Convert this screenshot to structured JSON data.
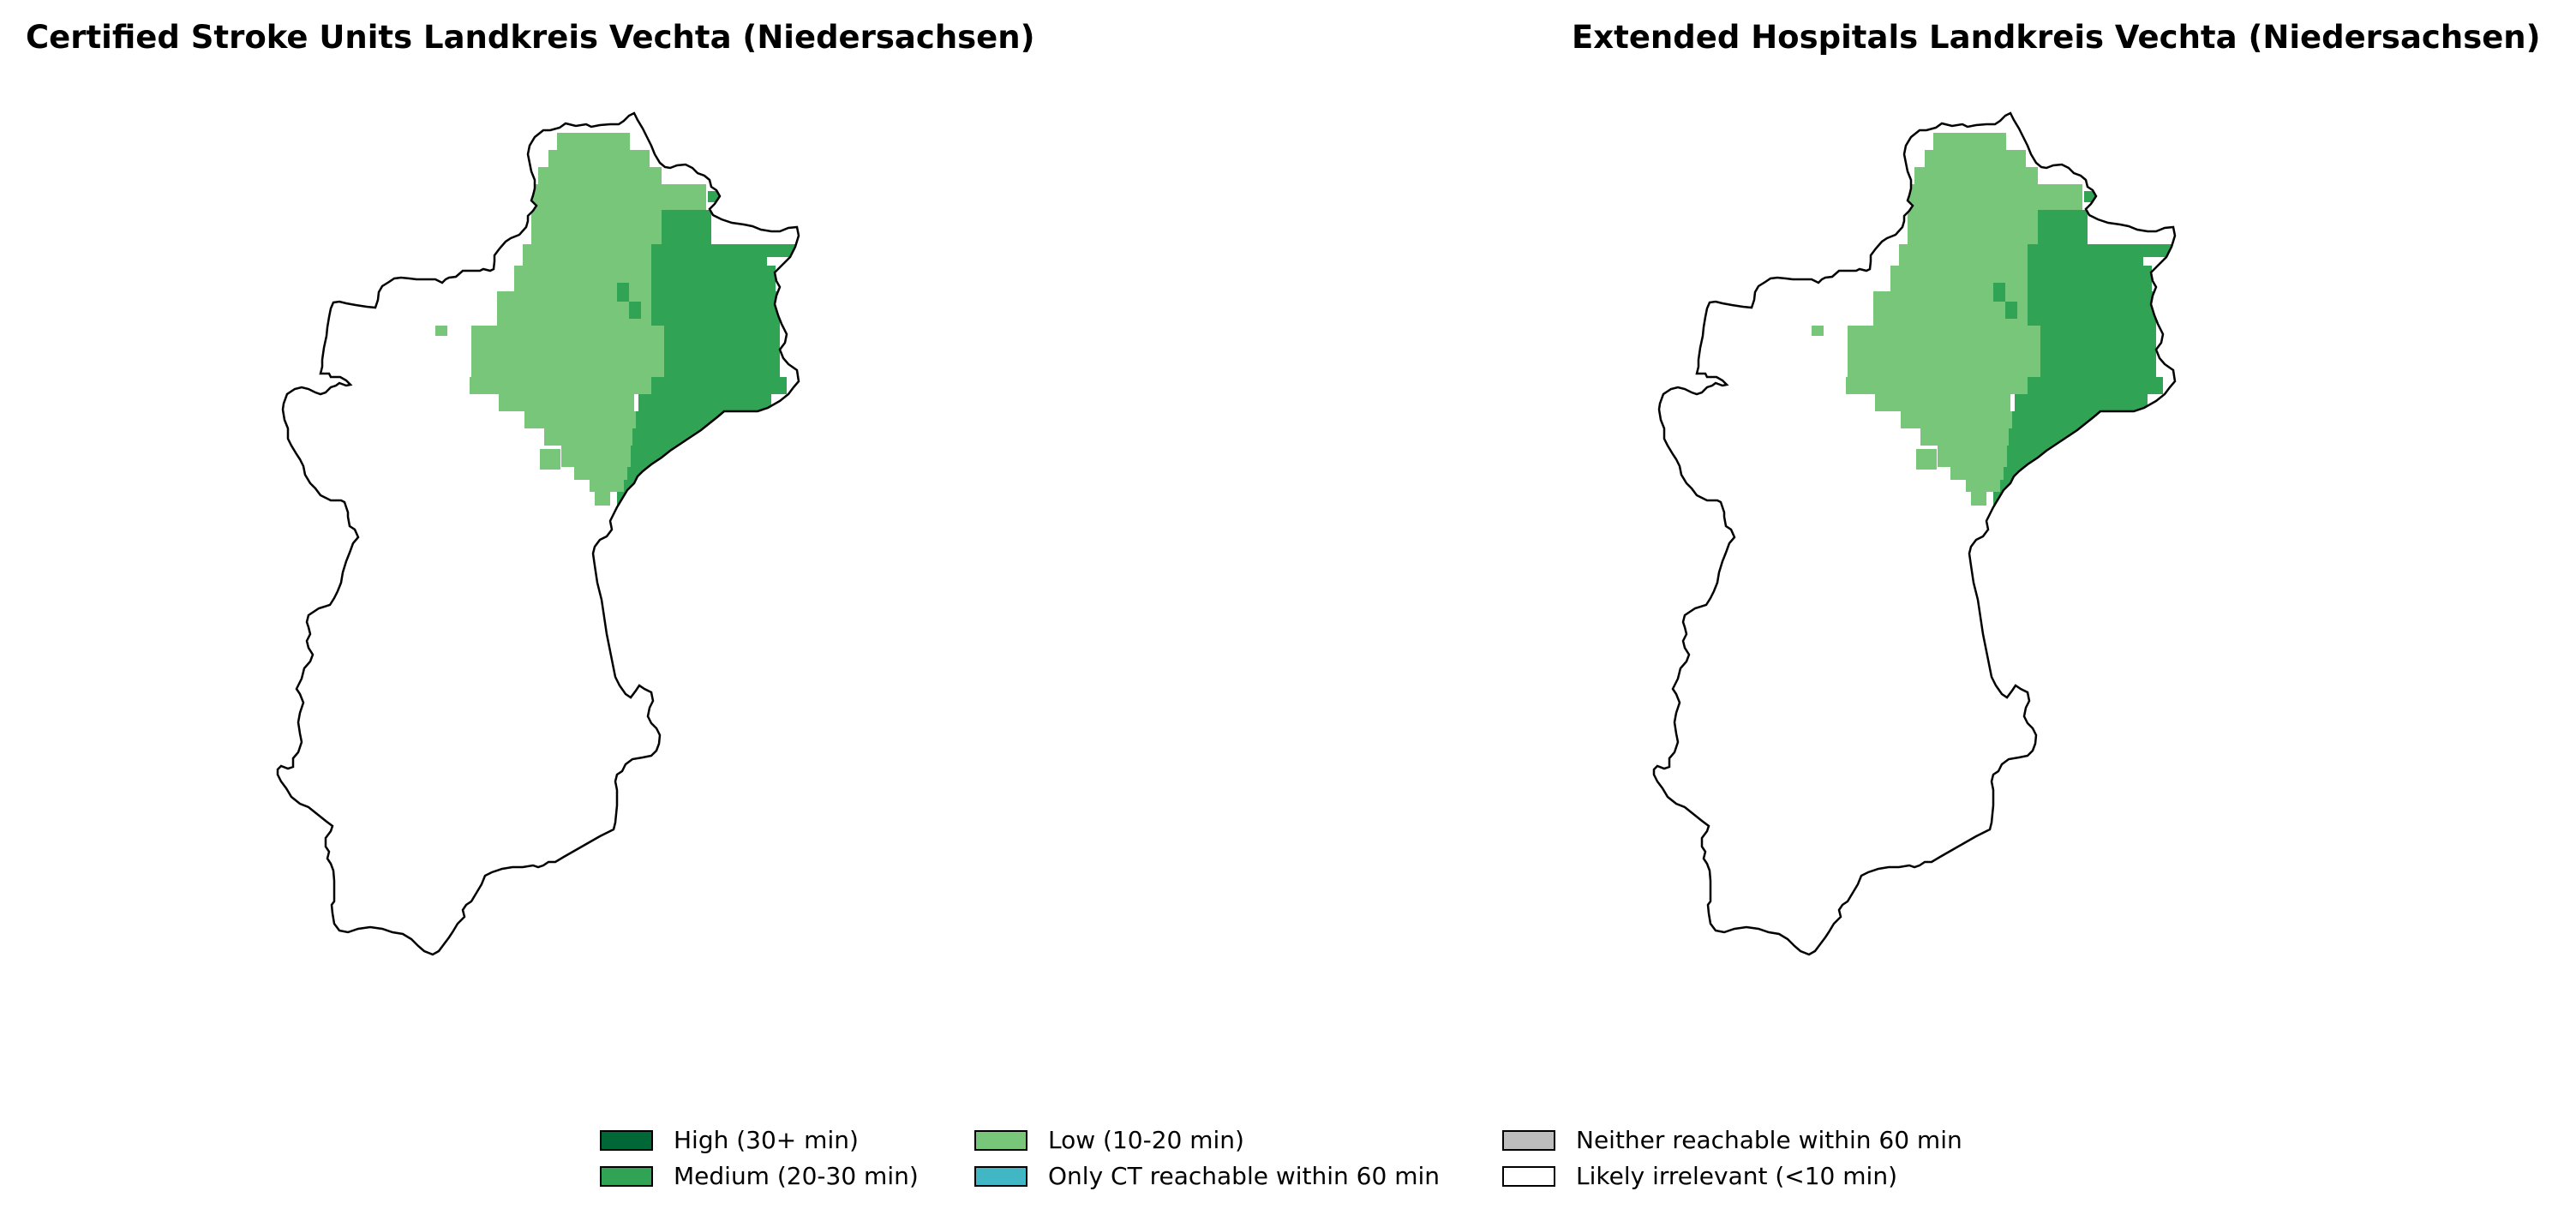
{
  "titles": {
    "left": "Certified Stroke Units Landkreis Vechta (Niedersachsen)",
    "right": "Extended Hospitals Landkreis Vechta (Niedersachsen)"
  },
  "maps": [
    {
      "id": "certified-stroke-units"
    },
    {
      "id": "extended-hospitals"
    }
  ],
  "legend": [
    {
      "label": "High (30+ min)",
      "color": "#006837"
    },
    {
      "label": "Medium (20-30 min)",
      "color": "#31a354"
    },
    {
      "label": "Low (10-20 min)",
      "color": "#78c679"
    },
    {
      "label": "Only CT reachable within 60 min",
      "color": "#41b6c4"
    },
    {
      "label": "Neither reachable within 60 min",
      "color": "#bdbdbd"
    },
    {
      "label": "Likely irrelevant (<10 min)",
      "color": "#ffffff"
    }
  ],
  "colors": {
    "outline": "#000000",
    "background": "#ffffff"
  }
}
